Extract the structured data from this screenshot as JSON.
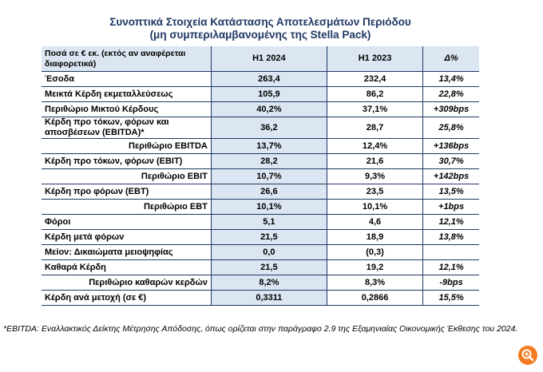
{
  "title": [
    "Συνοπτικά Στοιχεία Κατάστασης Αποτελεσμάτων Περιόδου",
    "(μη συμπεριλαμβανομένης της Stella Pack)"
  ],
  "table": {
    "header": [
      "Ποσά σε € εκ. (εκτός αν αναφέρεται διαφορετικά)",
      "H1 2024",
      "H1 2023",
      "Δ%"
    ],
    "rows": [
      [
        "Έσοδα",
        "263,4",
        "232,4",
        "13,4%"
      ],
      [
        "Μεικτά Κέρδη εκμεταλλεύσεως",
        "105,9",
        "86,2",
        "22,8%"
      ],
      [
        "Περιθώριο Μικτού Κέρδους",
        "40,2%",
        "37,1%",
        "+309bps"
      ],
      [
        "Κέρδη προ τόκων, φόρων και αποσβέσεων (EBITDA)*",
        "36,2",
        "28,7",
        "25,8%"
      ],
      [
        "Περιθώριο EBITDA",
        "13,7%",
        "12,4%",
        "+136bps"
      ],
      [
        "Κέρδη προ τόκων, φόρων (EBIT)",
        "28,2",
        "21,6",
        "30,7%"
      ],
      [
        "Περιθώριο EBIT",
        "10,7%",
        "9,3%",
        "+142bps"
      ],
      [
        "Κέρδη προ φόρων (EBT)",
        "26,6",
        "23,5",
        "13,5%"
      ],
      [
        "Περιθώριο EBT",
        "10,1%",
        "10,1%",
        "+1bps"
      ],
      [
        "Φόροι",
        "5,1",
        "4,6",
        "12,1%"
      ],
      [
        "Κέρδη μετά φόρων",
        "21,5",
        "18,9",
        "13,8%"
      ],
      [
        "Μείον: Δικαιώματα μειοψηφίας",
        "0,0",
        "(0,3)",
        null
      ],
      [
        "Καθαρά Κέρδη",
        "21,5",
        "19,2",
        "12,1%"
      ],
      [
        "Περιθώριο καθαρών κερδών",
        "8,2%",
        "8,3%",
        "-9bps"
      ],
      [
        "Κέρδη ανά μετοχή (σε €)",
        "0,3311",
        "0,2866",
        "15,5%"
      ]
    ]
  },
  "footnote": "*EBITDA: Εναλλακτικός Δείκτης Μέτρησης Απόδοσης, όπως ορίζεται στην παράγραφο 2.9 της Εξαμηνιαίας Οικονομικής Έκθεσης του 2024."
}
